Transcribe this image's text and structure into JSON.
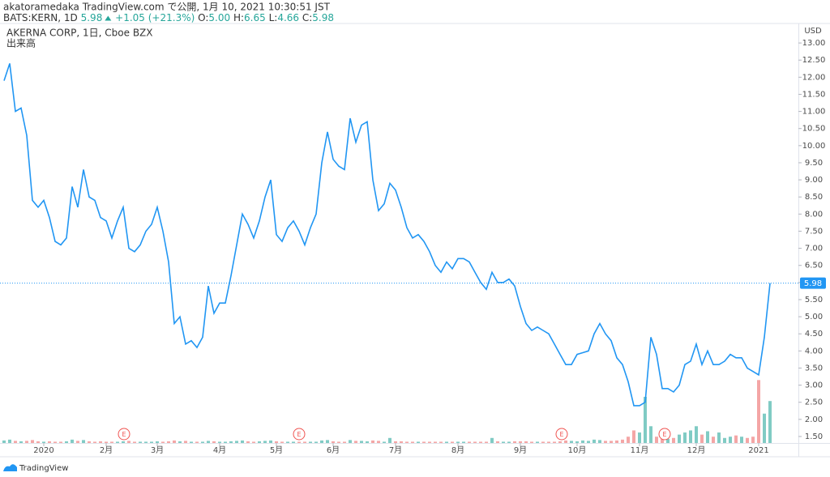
{
  "header": {
    "published": "akatoramedaka TradingView.com で公開, 1月 10, 2021 10:30:51 JST",
    "symbol": "BATS:KERN, 1D",
    "price": "5.98",
    "change": "+1.05 (+21.3%)",
    "ohlc": [
      {
        "key": "O:",
        "value": "5.00"
      },
      {
        "key": "H:",
        "value": "6.65"
      },
      {
        "key": "L:",
        "value": "4.66"
      },
      {
        "key": "C:",
        "value": "5.98"
      }
    ]
  },
  "branding": "TradingView",
  "chart_data": {
    "type": "line",
    "y_unit": "USD",
    "grid": false,
    "up_color": "#80cbc4",
    "down_color": "#f4a6a6",
    "categories": [
      null,
      null,
      null,
      null,
      null,
      null,
      null,
      "2020",
      null,
      null,
      null,
      null,
      null,
      null,
      null,
      null,
      null,
      null,
      "2月",
      null,
      null,
      null,
      null,
      null,
      null,
      null,
      null,
      "3月",
      null,
      null,
      null,
      null,
      null,
      null,
      null,
      null,
      null,
      null,
      "4月",
      null,
      null,
      null,
      null,
      null,
      null,
      null,
      null,
      null,
      "5月",
      null,
      null,
      null,
      null,
      null,
      null,
      null,
      null,
      null,
      "6月",
      null,
      null,
      null,
      null,
      null,
      null,
      null,
      null,
      null,
      null,
      "7月",
      null,
      null,
      null,
      null,
      null,
      null,
      null,
      null,
      null,
      null,
      "8月",
      null,
      null,
      null,
      null,
      null,
      null,
      null,
      null,
      null,
      null,
      "9月",
      null,
      null,
      null,
      null,
      null,
      null,
      null,
      null,
      null,
      "10月",
      null,
      null,
      null,
      null,
      null,
      null,
      null,
      null,
      null,
      null,
      "11月",
      null,
      null,
      null,
      null,
      null,
      null,
      null,
      null,
      null,
      "12月",
      null,
      null,
      null,
      null,
      null,
      null,
      null,
      null,
      null,
      null,
      "2021",
      null,
      null
    ],
    "series": [
      {
        "name": "AKERNA CORP, 1日, Cboe BZX",
        "color": "#2196f3",
        "values": [
          11.9,
          12.4,
          11.0,
          11.1,
          10.3,
          8.4,
          8.2,
          8.4,
          7.9,
          7.2,
          7.1,
          7.3,
          8.8,
          8.2,
          9.3,
          8.5,
          8.4,
          7.9,
          7.8,
          7.3,
          7.8,
          8.2,
          7.0,
          6.9,
          7.1,
          7.5,
          7.7,
          8.2,
          7.5,
          6.6,
          4.8,
          5.0,
          4.2,
          4.3,
          4.1,
          4.4,
          5.9,
          5.1,
          5.4,
          5.4,
          6.2,
          7.1,
          8.0,
          7.7,
          7.3,
          7.8,
          8.5,
          9.0,
          7.4,
          7.2,
          7.6,
          7.8,
          7.5,
          7.1,
          7.6,
          8.0,
          9.5,
          10.4,
          9.6,
          9.4,
          9.3,
          10.8,
          10.1,
          10.6,
          10.7,
          9.0,
          8.1,
          8.3,
          8.9,
          8.7,
          8.2,
          7.6,
          7.3,
          7.4,
          7.2,
          6.9,
          6.5,
          6.3,
          6.6,
          6.4,
          6.7,
          6.7,
          6.6,
          6.3,
          6.0,
          5.8,
          6.3,
          6.0,
          6.0,
          6.1,
          5.9,
          5.3,
          4.8,
          4.6,
          4.7,
          4.6,
          4.5,
          4.2,
          3.9,
          3.6,
          3.6,
          3.9,
          3.95,
          4.0,
          4.5,
          4.8,
          4.5,
          4.3,
          3.8,
          3.6,
          3.1,
          2.4,
          2.4,
          2.5,
          4.4,
          3.9,
          2.9,
          2.9,
          2.8,
          3.0,
          3.6,
          3.7,
          4.2,
          3.6,
          4.0,
          3.6,
          3.6,
          3.7,
          3.9,
          3.8,
          3.8,
          3.5,
          3.4,
          3.3,
          4.4,
          5.98
        ]
      },
      {
        "name": "出来高",
        "axis": "y2",
        "values": [
          0.6,
          0.8,
          0.5,
          0.4,
          0.5,
          0.7,
          0.4,
          0.3,
          0.4,
          0.3,
          0.3,
          0.4,
          0.8,
          0.5,
          0.7,
          0.4,
          0.3,
          0.4,
          0.3,
          0.3,
          0.3,
          0.4,
          0.5,
          0.3,
          0.3,
          0.3,
          0.3,
          0.4,
          0.3,
          0.4,
          0.6,
          0.4,
          0.5,
          0.3,
          0.3,
          0.3,
          0.5,
          0.4,
          0.3,
          0.3,
          0.4,
          0.5,
          0.6,
          0.4,
          0.3,
          0.4,
          0.5,
          0.6,
          0.4,
          0.3,
          0.3,
          0.3,
          0.3,
          0.3,
          0.3,
          0.3,
          0.6,
          0.7,
          0.4,
          0.3,
          0.3,
          0.7,
          0.5,
          0.5,
          0.4,
          0.6,
          0.5,
          0.3,
          1.2,
          0.4,
          0.4,
          0.3,
          0.3,
          0.3,
          0.3,
          0.3,
          0.3,
          0.3,
          0.3,
          0.3,
          0.3,
          0.3,
          0.3,
          0.3,
          0.3,
          0.3,
          1.2,
          0.4,
          0.3,
          0.3,
          0.4,
          0.4,
          0.4,
          0.3,
          0.3,
          0.3,
          0.3,
          0.3,
          0.4,
          0.6,
          0.5,
          0.4,
          0.6,
          0.5,
          0.8,
          0.7,
          0.5,
          0.5,
          0.6,
          0.8,
          1.5,
          3.0,
          2.5,
          11.0,
          4.0,
          1.5,
          2.0,
          1.0,
          1.2,
          2.0,
          2.5,
          3.0,
          4.0,
          2.0,
          2.8,
          1.5,
          2.5,
          1.2,
          1.5,
          1.8,
          1.5,
          1.2,
          1.5,
          15.0,
          7.0,
          10.0
        ]
      }
    ],
    "earnings_markers": [
      "E",
      "E",
      "E",
      "E"
    ],
    "ylim": [
      1.31,
      13.57
    ],
    "y2lim": [
      0,
      100
    ],
    "yticks": [
      {
        "value": 1.5,
        "label": "1.50"
      },
      {
        "value": 2,
        "label": "2.00"
      },
      {
        "value": 2.5,
        "label": "2.50"
      },
      {
        "value": 3,
        "label": "3.00"
      },
      {
        "value": 3.5,
        "label": "3.50"
      },
      {
        "value": 4,
        "label": "4.00"
      },
      {
        "value": 4.5,
        "label": "4.50"
      },
      {
        "value": 5,
        "label": "5.00"
      },
      {
        "value": 5.5,
        "label": "5.50"
      },
      {
        "value": 6,
        "label": "6.00"
      },
      {
        "value": 6.5,
        "label": "6.50"
      },
      {
        "value": 7,
        "label": "7.00"
      },
      {
        "value": 7.5,
        "label": "7.50"
      },
      {
        "value": 8,
        "label": "8.00"
      },
      {
        "value": 8.5,
        "label": "8.50"
      },
      {
        "value": 9,
        "label": "9.00"
      },
      {
        "value": 9.5,
        "label": "9.50"
      },
      {
        "value": 10,
        "label": "10.00"
      },
      {
        "value": 10.5,
        "label": "10.50"
      },
      {
        "value": 11,
        "label": "11.00"
      },
      {
        "value": 11.5,
        "label": "11.50"
      },
      {
        "value": 12,
        "label": "12.00"
      },
      {
        "value": 12.5,
        "label": "12.50"
      },
      {
        "value": 13,
        "label": "13.00"
      }
    ]
  }
}
